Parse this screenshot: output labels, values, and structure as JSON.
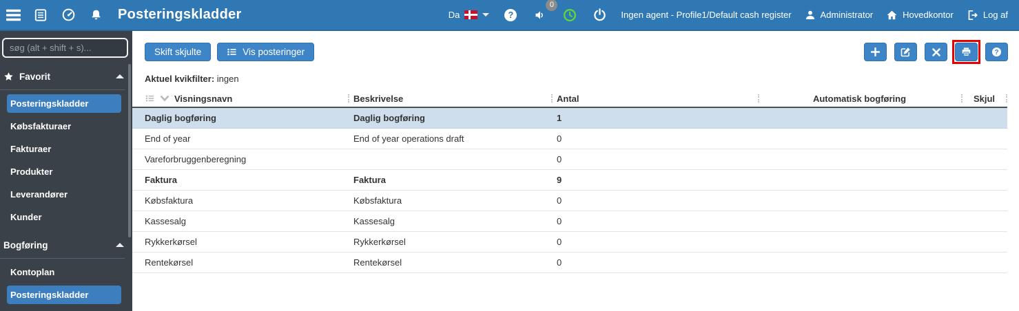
{
  "topbar": {
    "title": "Posteringskladder",
    "language_label": "Da",
    "notification_badge": "0",
    "agent_status": "Ingen agent - Profile1/Default cash register",
    "user_name": "Administrator",
    "company_name": "Hovedkontor",
    "logout_label": "Log af"
  },
  "sidebar": {
    "search_placeholder": "søg (alt + shift + s)...",
    "sections": [
      {
        "label": "Favorit",
        "icon": "star-icon",
        "items": [
          {
            "label": "Posteringskladder",
            "selected": true
          },
          {
            "label": "Købsfakturaer",
            "selected": false
          },
          {
            "label": "Fakturaer",
            "selected": false
          },
          {
            "label": "Produkter",
            "selected": false
          },
          {
            "label": "Leverandører",
            "selected": false
          },
          {
            "label": "Kunder",
            "selected": false
          }
        ]
      },
      {
        "label": "Bogføring",
        "icon": null,
        "items": [
          {
            "label": "Kontoplan",
            "selected": false
          },
          {
            "label": "Posteringskladder",
            "selected": true
          }
        ]
      }
    ]
  },
  "toolbar": {
    "skift_skjulte_label": "Skift skjulte",
    "vis_posteringer_label": "Vis posteringer",
    "icon_buttons": [
      {
        "name": "add",
        "glyph": "plus",
        "highlighted": false
      },
      {
        "name": "edit",
        "glyph": "pencil-square",
        "highlighted": false
      },
      {
        "name": "delete",
        "glyph": "x",
        "highlighted": false
      },
      {
        "name": "print",
        "glyph": "printer",
        "highlighted": true
      },
      {
        "name": "help",
        "glyph": "question",
        "highlighted": false
      }
    ]
  },
  "quickfilter": {
    "label": "Aktuel kvikfilter:",
    "value": "ingen"
  },
  "table": {
    "columns": [
      "Visningsnavn",
      "Beskrivelse",
      "Antal",
      "Automatisk bogføring",
      "Skjul"
    ],
    "rows": [
      {
        "visningsnavn": "Daglig bogføring",
        "beskrivelse": "Daglig bogføring",
        "antal": "1",
        "automatisk_bogforing": "",
        "skjul": "",
        "bold": true,
        "highlighted": true
      },
      {
        "visningsnavn": "End of year",
        "beskrivelse": "End of year operations draft",
        "antal": "0",
        "automatisk_bogforing": "",
        "skjul": "",
        "bold": false,
        "highlighted": false
      },
      {
        "visningsnavn": "Vareforbruggenberegning",
        "beskrivelse": "",
        "antal": "0",
        "automatisk_bogforing": "",
        "skjul": "",
        "bold": false,
        "highlighted": false
      },
      {
        "visningsnavn": "Faktura",
        "beskrivelse": "Faktura",
        "antal": "9",
        "automatisk_bogforing": "",
        "skjul": "",
        "bold": true,
        "highlighted": false
      },
      {
        "visningsnavn": "Købsfaktura",
        "beskrivelse": "Købsfaktura",
        "antal": "0",
        "automatisk_bogforing": "",
        "skjul": "",
        "bold": false,
        "highlighted": false
      },
      {
        "visningsnavn": "Kassesalg",
        "beskrivelse": "Kassesalg",
        "antal": "0",
        "automatisk_bogforing": "",
        "skjul": "",
        "bold": false,
        "highlighted": false
      },
      {
        "visningsnavn": "Rykkerkørsel",
        "beskrivelse": "Rykkerkørsel",
        "antal": "0",
        "automatisk_bogforing": "",
        "skjul": "",
        "bold": false,
        "highlighted": false
      },
      {
        "visningsnavn": "Rentekørsel",
        "beskrivelse": "Rentekørsel",
        "antal": "0",
        "automatisk_bogforing": "",
        "skjul": "",
        "bold": false,
        "highlighted": false
      }
    ]
  },
  "colors": {
    "topbar_blue": "#2f78b4",
    "sidebar_dark": "#3a4148",
    "button_blue": "#3d85c6",
    "selected_item_blue": "#3d7fbe",
    "row_highlight": "#cfdeed",
    "clock_green": "#5fd43c",
    "flag_red": "#c8102e",
    "annotation_red": "#e60000"
  }
}
